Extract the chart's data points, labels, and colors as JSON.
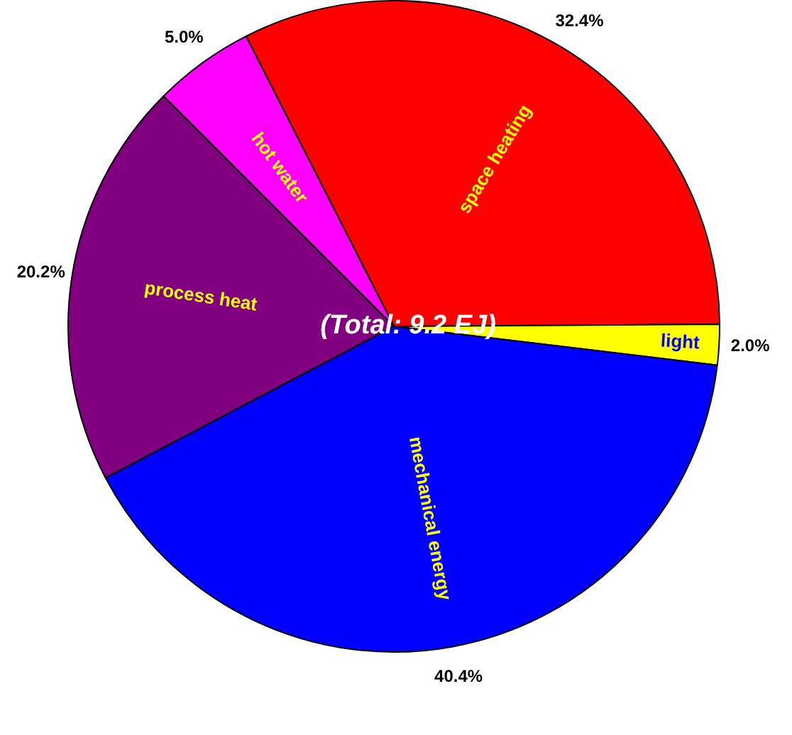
{
  "chart_data": {
    "type": "pie",
    "categories": [
      "space heating",
      "light",
      "mechanical energy",
      "process heat",
      "hot water"
    ],
    "values": [
      32.4,
      2.0,
      40.4,
      20.2,
      5.0
    ],
    "colors": [
      "#ff0000",
      "#ffff00",
      "#0000ff",
      "#800080",
      "#ff00ff"
    ],
    "value_labels": [
      "32.4%",
      "2.0%",
      "40.4%",
      "20.2%",
      "5.0%"
    ],
    "annotations": [
      "(Total: 9.2 EJ)"
    ],
    "legend": false
  }
}
